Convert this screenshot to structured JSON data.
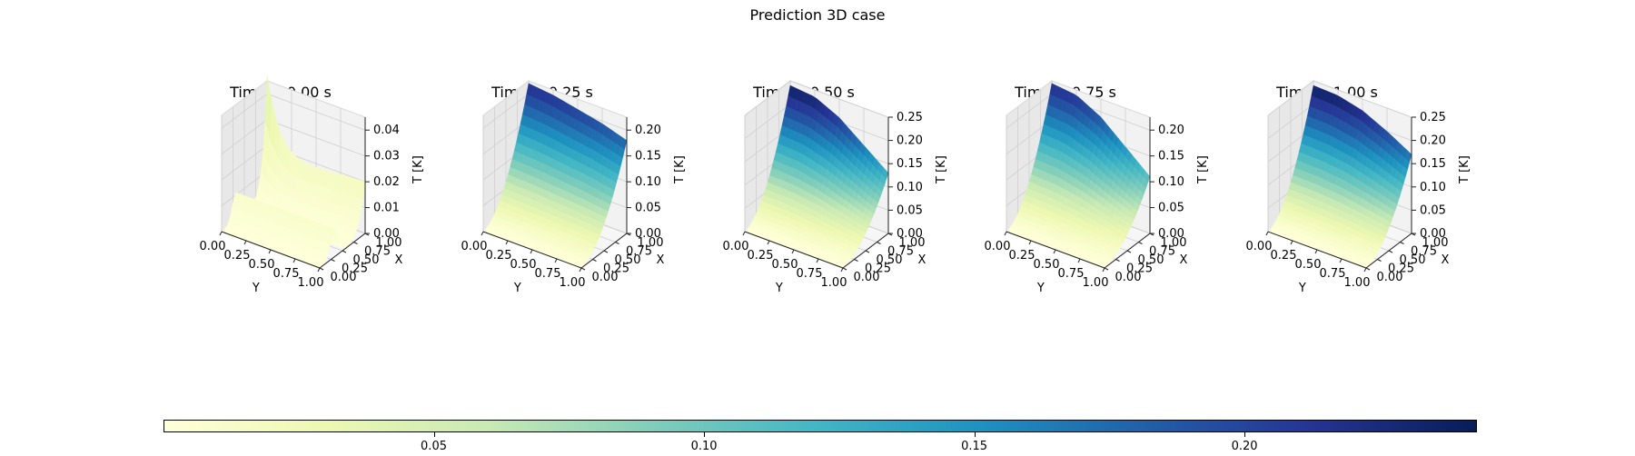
{
  "figure": {
    "title": "Prediction 3D case"
  },
  "colormap": {
    "name": "YlGnBu",
    "stops": [
      "#ffffd9",
      "#edf8b1",
      "#c7e9b4",
      "#7fcdbb",
      "#41b6c4",
      "#1d91c0",
      "#225ea8",
      "#253494",
      "#081d58"
    ]
  },
  "colorbar": {
    "vmin": 0.0,
    "vmax": 0.243,
    "ticks": [
      0.05,
      0.1,
      0.15,
      0.2
    ],
    "tick_labels": [
      "0.05",
      "0.10",
      "0.15",
      "0.20"
    ]
  },
  "chart_data": [
    {
      "type": "surface3d",
      "title": "Time = 0.00 s",
      "xlabel": "Y",
      "ylabel": "X",
      "zlabel": "T [K]",
      "x_ticks": [
        "0.00",
        "0.25",
        "0.50",
        "0.75",
        "1.00"
      ],
      "y_ticks": [
        "0.00",
        "0.25",
        "0.50",
        "0.75",
        "1.00"
      ],
      "z_ticks": [
        "0.00",
        "0.01",
        "0.02",
        "0.03",
        "0.04"
      ],
      "zlim": [
        0,
        0.045
      ],
      "grid": true,
      "profile_at_y0": [
        0.043,
        0.03,
        0.021,
        0.02,
        0.022
      ],
      "description_points": "T peaks at X=1,Y=0 (~0.043); ridge along Y near X=0.5 (~0.012)"
    },
    {
      "type": "surface3d",
      "title": "Time = 0.25 s",
      "xlabel": "Y",
      "ylabel": "X",
      "zlabel": "T [K]",
      "x_ticks": [
        "0.00",
        "0.25",
        "0.50",
        "0.75",
        "1.00"
      ],
      "y_ticks": [
        "0.00",
        "0.25",
        "0.50",
        "0.75",
        "1.00"
      ],
      "z_ticks": [
        "0.00",
        "0.05",
        "0.10",
        "0.15",
        "0.20"
      ],
      "zlim": [
        0,
        0.225
      ],
      "grid": true,
      "profile_at_xmax": [
        0.22,
        0.215,
        0.205,
        0.195,
        0.18
      ]
    },
    {
      "type": "surface3d",
      "title": "Time = 0.50 s",
      "xlabel": "Y",
      "ylabel": "X",
      "zlabel": "T [K]",
      "x_ticks": [
        "0.00",
        "0.25",
        "0.50",
        "0.75",
        "1.00"
      ],
      "y_ticks": [
        "0.00",
        "0.25",
        "0.50",
        "0.75",
        "1.00"
      ],
      "z_ticks": [
        "0.00",
        "0.05",
        "0.10",
        "0.15",
        "0.20",
        "0.25"
      ],
      "zlim": [
        0,
        0.25
      ],
      "grid": true,
      "profile_at_xmax": [
        0.24,
        0.235,
        0.21,
        0.17,
        0.13
      ]
    },
    {
      "type": "surface3d",
      "title": "Time = 0.75 s",
      "xlabel": "Y",
      "ylabel": "X",
      "zlabel": "T [K]",
      "x_ticks": [
        "0.00",
        "0.25",
        "0.50",
        "0.75",
        "1.00"
      ],
      "y_ticks": [
        "0.00",
        "0.25",
        "0.50",
        "0.75",
        "1.00"
      ],
      "z_ticks": [
        "0.00",
        "0.05",
        "0.10",
        "0.15",
        "0.20"
      ],
      "zlim": [
        0,
        0.225
      ],
      "grid": true,
      "profile_at_xmax": [
        0.22,
        0.215,
        0.19,
        0.15,
        0.11
      ]
    },
    {
      "type": "surface3d",
      "title": "Time = 1.00 s",
      "xlabel": "Y",
      "ylabel": "X",
      "zlabel": "T [K]",
      "x_ticks": [
        "0.00",
        "0.25",
        "0.50",
        "0.75",
        "1.00"
      ],
      "y_ticks": [
        "0.00",
        "0.25",
        "0.50",
        "0.75",
        "1.00"
      ],
      "z_ticks": [
        "0.00",
        "0.05",
        "0.10",
        "0.15",
        "0.20",
        "0.25"
      ],
      "zlim": [
        0,
        0.25
      ],
      "grid": true,
      "profile_at_xmax": [
        0.24,
        0.238,
        0.225,
        0.2,
        0.17
      ]
    }
  ]
}
